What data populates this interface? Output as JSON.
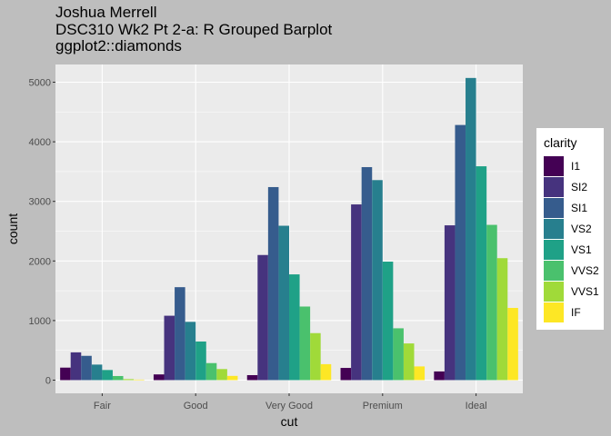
{
  "title_lines": [
    "Joshua Merrell",
    "DSC310 Wk2 Pt 2-a: R Grouped Barplot",
    "ggplot2::diamonds"
  ],
  "colors": {
    "background": "#bebebe",
    "panel": "#ebebeb",
    "grid": "#ffffff",
    "palette": [
      "#440154",
      "#46337e",
      "#365c8d",
      "#277f8e",
      "#1fa187",
      "#4ac16d",
      "#a0da39",
      "#fde725"
    ]
  },
  "chart_data": {
    "type": "bar",
    "grouped": true,
    "title": "Joshua Merrell\nDSC310 Wk2 Pt 2-a: R Grouped Barplot\nggplot2::diamonds",
    "xlabel": "cut",
    "ylabel": "count",
    "categories": [
      "Fair",
      "Good",
      "Very Good",
      "Premium",
      "Ideal"
    ],
    "yticks": [
      0,
      1000,
      2000,
      3000,
      4000,
      5000
    ],
    "ytick_labels": [
      "0",
      "1000",
      "2000",
      "3000",
      "4000",
      "5000"
    ],
    "ylim": [
      0,
      5300
    ],
    "grid": true,
    "legend_title": "clarity",
    "legend_position": "right",
    "series": [
      {
        "name": "I1",
        "values": [
          210,
          96,
          84,
          205,
          146
        ]
      },
      {
        "name": "SI2",
        "values": [
          466,
          1081,
          2100,
          2949,
          2598
        ]
      },
      {
        "name": "SI1",
        "values": [
          408,
          1560,
          3240,
          3575,
          4282
        ]
      },
      {
        "name": "VS2",
        "values": [
          261,
          978,
          2591,
          3357,
          5071
        ]
      },
      {
        "name": "VS1",
        "values": [
          170,
          648,
          1775,
          1989,
          3589
        ]
      },
      {
        "name": "VVS2",
        "values": [
          69,
          286,
          1235,
          870,
          2606
        ]
      },
      {
        "name": "VVS1",
        "values": [
          17,
          186,
          789,
          616,
          2047
        ]
      },
      {
        "name": "IF",
        "values": [
          9,
          71,
          268,
          230,
          1212
        ]
      }
    ]
  }
}
